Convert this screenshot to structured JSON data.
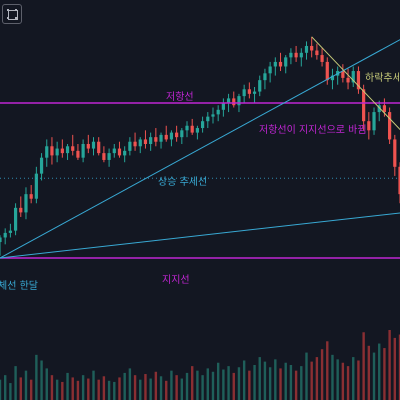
{
  "chart_data": {
    "type": "candlestick",
    "title": "",
    "ylim": [
      0,
      100
    ],
    "colors": {
      "background": "#131722",
      "up": "#26a69a",
      "down": "#ef5350",
      "support_resistance": "#c026d3",
      "trendline": "#38a9d4",
      "downtrend": "#c8cc7a",
      "volume_down": "#8a2f33",
      "volume_up": "#1f5f5a"
    },
    "candles": [
      {
        "o": 7,
        "h": 10,
        "l": 1,
        "c": 9
      },
      {
        "o": 9,
        "h": 13,
        "l": 6,
        "c": 11
      },
      {
        "o": 11,
        "h": 15,
        "l": 9,
        "c": 12
      },
      {
        "o": 12,
        "h": 24,
        "l": 10,
        "c": 22
      },
      {
        "o": 22,
        "h": 27,
        "l": 18,
        "c": 20
      },
      {
        "o": 20,
        "h": 31,
        "l": 17,
        "c": 28
      },
      {
        "o": 28,
        "h": 32,
        "l": 24,
        "c": 26
      },
      {
        "o": 26,
        "h": 40,
        "l": 24,
        "c": 37
      },
      {
        "o": 37,
        "h": 46,
        "l": 34,
        "c": 44
      },
      {
        "o": 44,
        "h": 52,
        "l": 40,
        "c": 49
      },
      {
        "o": 49,
        "h": 53,
        "l": 41,
        "c": 45
      },
      {
        "o": 45,
        "h": 51,
        "l": 42,
        "c": 48
      },
      {
        "o": 48,
        "h": 52,
        "l": 44,
        "c": 46
      },
      {
        "o": 46,
        "h": 50,
        "l": 43,
        "c": 49
      },
      {
        "o": 49,
        "h": 54,
        "l": 45,
        "c": 47
      },
      {
        "o": 47,
        "h": 50,
        "l": 43,
        "c": 44
      },
      {
        "o": 44,
        "h": 52,
        "l": 42,
        "c": 50
      },
      {
        "o": 50,
        "h": 54,
        "l": 46,
        "c": 48
      },
      {
        "o": 48,
        "h": 53,
        "l": 45,
        "c": 51
      },
      {
        "o": 51,
        "h": 53,
        "l": 45,
        "c": 46
      },
      {
        "o": 46,
        "h": 49,
        "l": 42,
        "c": 43
      },
      {
        "o": 43,
        "h": 48,
        "l": 40,
        "c": 46
      },
      {
        "o": 46,
        "h": 50,
        "l": 44,
        "c": 48
      },
      {
        "o": 48,
        "h": 51,
        "l": 44,
        "c": 45
      },
      {
        "o": 45,
        "h": 49,
        "l": 42,
        "c": 47
      },
      {
        "o": 47,
        "h": 53,
        "l": 45,
        "c": 51
      },
      {
        "o": 51,
        "h": 55,
        "l": 47,
        "c": 49
      },
      {
        "o": 49,
        "h": 53,
        "l": 46,
        "c": 52
      },
      {
        "o": 52,
        "h": 56,
        "l": 48,
        "c": 50
      },
      {
        "o": 50,
        "h": 55,
        "l": 47,
        "c": 53
      },
      {
        "o": 53,
        "h": 57,
        "l": 49,
        "c": 51
      },
      {
        "o": 51,
        "h": 55,
        "l": 48,
        "c": 54
      },
      {
        "o": 54,
        "h": 58,
        "l": 51,
        "c": 52
      },
      {
        "o": 52,
        "h": 56,
        "l": 49,
        "c": 55
      },
      {
        "o": 55,
        "h": 58,
        "l": 51,
        "c": 53
      },
      {
        "o": 53,
        "h": 57,
        "l": 50,
        "c": 56
      },
      {
        "o": 56,
        "h": 60,
        "l": 53,
        "c": 58
      },
      {
        "o": 58,
        "h": 61,
        "l": 54,
        "c": 55
      },
      {
        "o": 55,
        "h": 58,
        "l": 52,
        "c": 57
      },
      {
        "o": 57,
        "h": 62,
        "l": 55,
        "c": 60
      },
      {
        "o": 60,
        "h": 64,
        "l": 57,
        "c": 62
      },
      {
        "o": 62,
        "h": 66,
        "l": 59,
        "c": 63
      },
      {
        "o": 63,
        "h": 67,
        "l": 60,
        "c": 65
      },
      {
        "o": 65,
        "h": 70,
        "l": 62,
        "c": 68
      },
      {
        "o": 68,
        "h": 72,
        "l": 64,
        "c": 70
      },
      {
        "o": 70,
        "h": 73,
        "l": 66,
        "c": 67
      },
      {
        "o": 67,
        "h": 72,
        "l": 64,
        "c": 71
      },
      {
        "o": 71,
        "h": 76,
        "l": 68,
        "c": 74
      },
      {
        "o": 74,
        "h": 77,
        "l": 70,
        "c": 72
      },
      {
        "o": 72,
        "h": 75,
        "l": 68,
        "c": 73
      },
      {
        "o": 73,
        "h": 80,
        "l": 71,
        "c": 78
      },
      {
        "o": 78,
        "h": 83,
        "l": 74,
        "c": 81
      },
      {
        "o": 81,
        "h": 86,
        "l": 77,
        "c": 84
      },
      {
        "o": 84,
        "h": 88,
        "l": 80,
        "c": 86
      },
      {
        "o": 86,
        "h": 90,
        "l": 82,
        "c": 84
      },
      {
        "o": 84,
        "h": 89,
        "l": 81,
        "c": 88
      },
      {
        "o": 88,
        "h": 92,
        "l": 85,
        "c": 90
      },
      {
        "o": 90,
        "h": 93,
        "l": 86,
        "c": 88
      },
      {
        "o": 88,
        "h": 92,
        "l": 84,
        "c": 90
      },
      {
        "o": 90,
        "h": 95,
        "l": 87,
        "c": 93
      },
      {
        "o": 93,
        "h": 97,
        "l": 88,
        "c": 91
      },
      {
        "o": 91,
        "h": 94,
        "l": 87,
        "c": 89
      },
      {
        "o": 89,
        "h": 92,
        "l": 84,
        "c": 86
      },
      {
        "o": 86,
        "h": 88,
        "l": 76,
        "c": 78
      },
      {
        "o": 78,
        "h": 83,
        "l": 74,
        "c": 80
      },
      {
        "o": 80,
        "h": 84,
        "l": 76,
        "c": 82
      },
      {
        "o": 82,
        "h": 85,
        "l": 77,
        "c": 79
      },
      {
        "o": 79,
        "h": 83,
        "l": 74,
        "c": 77
      },
      {
        "o": 77,
        "h": 84,
        "l": 75,
        "c": 82
      },
      {
        "o": 82,
        "h": 84,
        "l": 72,
        "c": 74
      },
      {
        "o": 74,
        "h": 76,
        "l": 56,
        "c": 60
      },
      {
        "o": 60,
        "h": 64,
        "l": 52,
        "c": 56
      },
      {
        "o": 56,
        "h": 66,
        "l": 54,
        "c": 64
      },
      {
        "o": 64,
        "h": 69,
        "l": 60,
        "c": 67
      },
      {
        "o": 67,
        "h": 70,
        "l": 62,
        "c": 64
      },
      {
        "o": 64,
        "h": 66,
        "l": 50,
        "c": 52
      },
      {
        "o": 52,
        "h": 54,
        "l": 36,
        "c": 40
      },
      {
        "o": 40,
        "h": 42,
        "l": 24,
        "c": 28
      }
    ],
    "volumes": [
      18,
      22,
      15,
      30,
      20,
      26,
      18,
      40,
      35,
      28,
      22,
      18,
      16,
      24,
      20,
      17,
      22,
      19,
      26,
      18,
      21,
      17,
      16,
      20,
      24,
      28,
      22,
      18,
      23,
      19,
      25,
      21,
      17,
      26,
      22,
      19,
      24,
      30,
      26,
      22,
      28,
      25,
      33,
      27,
      30,
      24,
      29,
      35,
      26,
      31,
      38,
      34,
      29,
      36,
      28,
      33,
      31,
      26,
      30,
      42,
      34,
      38,
      45,
      52,
      40,
      36,
      33,
      30,
      38,
      35,
      60,
      48,
      42,
      50,
      46,
      62,
      55,
      58
    ],
    "lines": [
      {
        "name": "저항선",
        "kind": "horizontal",
        "style": "solid",
        "y": 68
      },
      {
        "name": "지지선",
        "kind": "horizontal",
        "style": "solid",
        "y": 0
      },
      {
        "name": "상승 추세선",
        "kind": "horizontal",
        "style": "dotted",
        "y": 35
      },
      {
        "kind": "trend",
        "from": [
          0,
          0
        ],
        "to": [
          78,
          97
        ]
      },
      {
        "kind": "trend",
        "from": [
          0,
          0
        ],
        "to": [
          78,
          20
        ]
      },
      {
        "kind": "trend",
        "from": [
          60,
          97
        ],
        "to": [
          78,
          54
        ]
      }
    ],
    "annotations": {
      "resistance": "저항선",
      "support": "지지선",
      "uptrend": "상승 추세선",
      "downtrend": "하락추세선",
      "flip": "저항선이 지지선으로 바뀜",
      "bottom_left": "체선 한달"
    }
  }
}
